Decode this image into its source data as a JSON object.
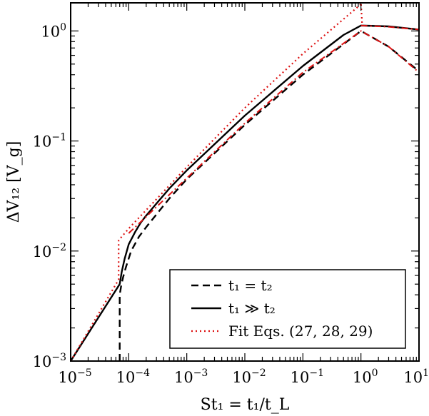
{
  "chart_data": {
    "type": "line",
    "title": "",
    "xlabel": "St₁ = t₁/t_L",
    "ylabel": "ΔV₁₂ [V_g]",
    "xscale": "log",
    "yscale": "log",
    "xlim": [
      1e-05,
      10
    ],
    "ylim": [
      0.001,
      1.8
    ],
    "grid": false,
    "legend_position": "bottom-right",
    "x_ticks": [
      {
        "base": "10",
        "exp": "−5",
        "value": 1e-05
      },
      {
        "base": "10",
        "exp": "−4",
        "value": 0.0001
      },
      {
        "base": "10",
        "exp": "−3",
        "value": 0.001
      },
      {
        "base": "10",
        "exp": "−2",
        "value": 0.01
      },
      {
        "base": "10",
        "exp": "−1",
        "value": 0.1
      },
      {
        "base": "10",
        "exp": "0",
        "value": 1
      },
      {
        "base": "10",
        "exp": "1",
        "value": 10
      }
    ],
    "y_ticks": [
      {
        "base": "10",
        "exp": "−3",
        "value": 0.001
      },
      {
        "base": "10",
        "exp": "−2",
        "value": 0.01
      },
      {
        "base": "10",
        "exp": "−1",
        "value": 0.1
      },
      {
        "base": "10",
        "exp": "0",
        "value": 1
      }
    ],
    "series": [
      {
        "name": "t₁ = t₂",
        "style": "dashed",
        "color": "#000000",
        "x": [
          7e-05,
          7e-05,
          7.4e-05,
          8e-05,
          9e-05,
          0.00011,
          0.00015,
          0.0002,
          0.0005,
          0.001,
          0.01,
          0.1,
          1.0,
          3.0,
          10.0
        ],
        "y": [
          0.001,
          0.004,
          0.0048,
          0.0058,
          0.0072,
          0.01,
          0.0135,
          0.0165,
          0.03,
          0.045,
          0.14,
          0.4,
          1.0,
          0.72,
          0.43
        ]
      },
      {
        "name": "t₁ ≫ t₂",
        "style": "solid",
        "color": "#000000",
        "x": [
          1e-05,
          7e-05,
          7.6e-05,
          8.5e-05,
          0.0001,
          0.00013,
          0.00016,
          0.0002,
          0.0005,
          0.001,
          0.01,
          0.1,
          0.5,
          1.0,
          3.0,
          10.0
        ],
        "y": [
          0.001,
          0.005,
          0.0065,
          0.0085,
          0.0115,
          0.015,
          0.018,
          0.021,
          0.037,
          0.054,
          0.17,
          0.48,
          0.92,
          1.12,
          1.1,
          1.03
        ]
      },
      {
        "name": "Fit Eqs. (27, 28, 29)",
        "style": "dotted",
        "color": "#dd1111",
        "x": [
          1e-05,
          6.7e-05,
          6.7e-05,
          0.0001,
          0.001,
          0.01,
          0.1,
          1.0,
          1.0,
          1.05
        ],
        "y": [
          0.001,
          0.0055,
          0.0125,
          0.016,
          0.058,
          0.2,
          0.62,
          1.75,
          1.8,
          1.12
        ]
      },
      {
        "name": "",
        "style": "dashdot",
        "color": "#dd1111",
        "x": [
          0.0001,
          0.001,
          0.01,
          0.1,
          1.0,
          3.0,
          10.0
        ],
        "y": [
          0.0145,
          0.046,
          0.145,
          0.42,
          1.0,
          0.72,
          0.42
        ]
      },
      {
        "name": "",
        "style": "dashdot",
        "color": "#dd1111",
        "x": [
          1.0,
          3.0,
          10.0
        ],
        "y": [
          1.12,
          1.09,
          1.03
        ]
      }
    ]
  }
}
